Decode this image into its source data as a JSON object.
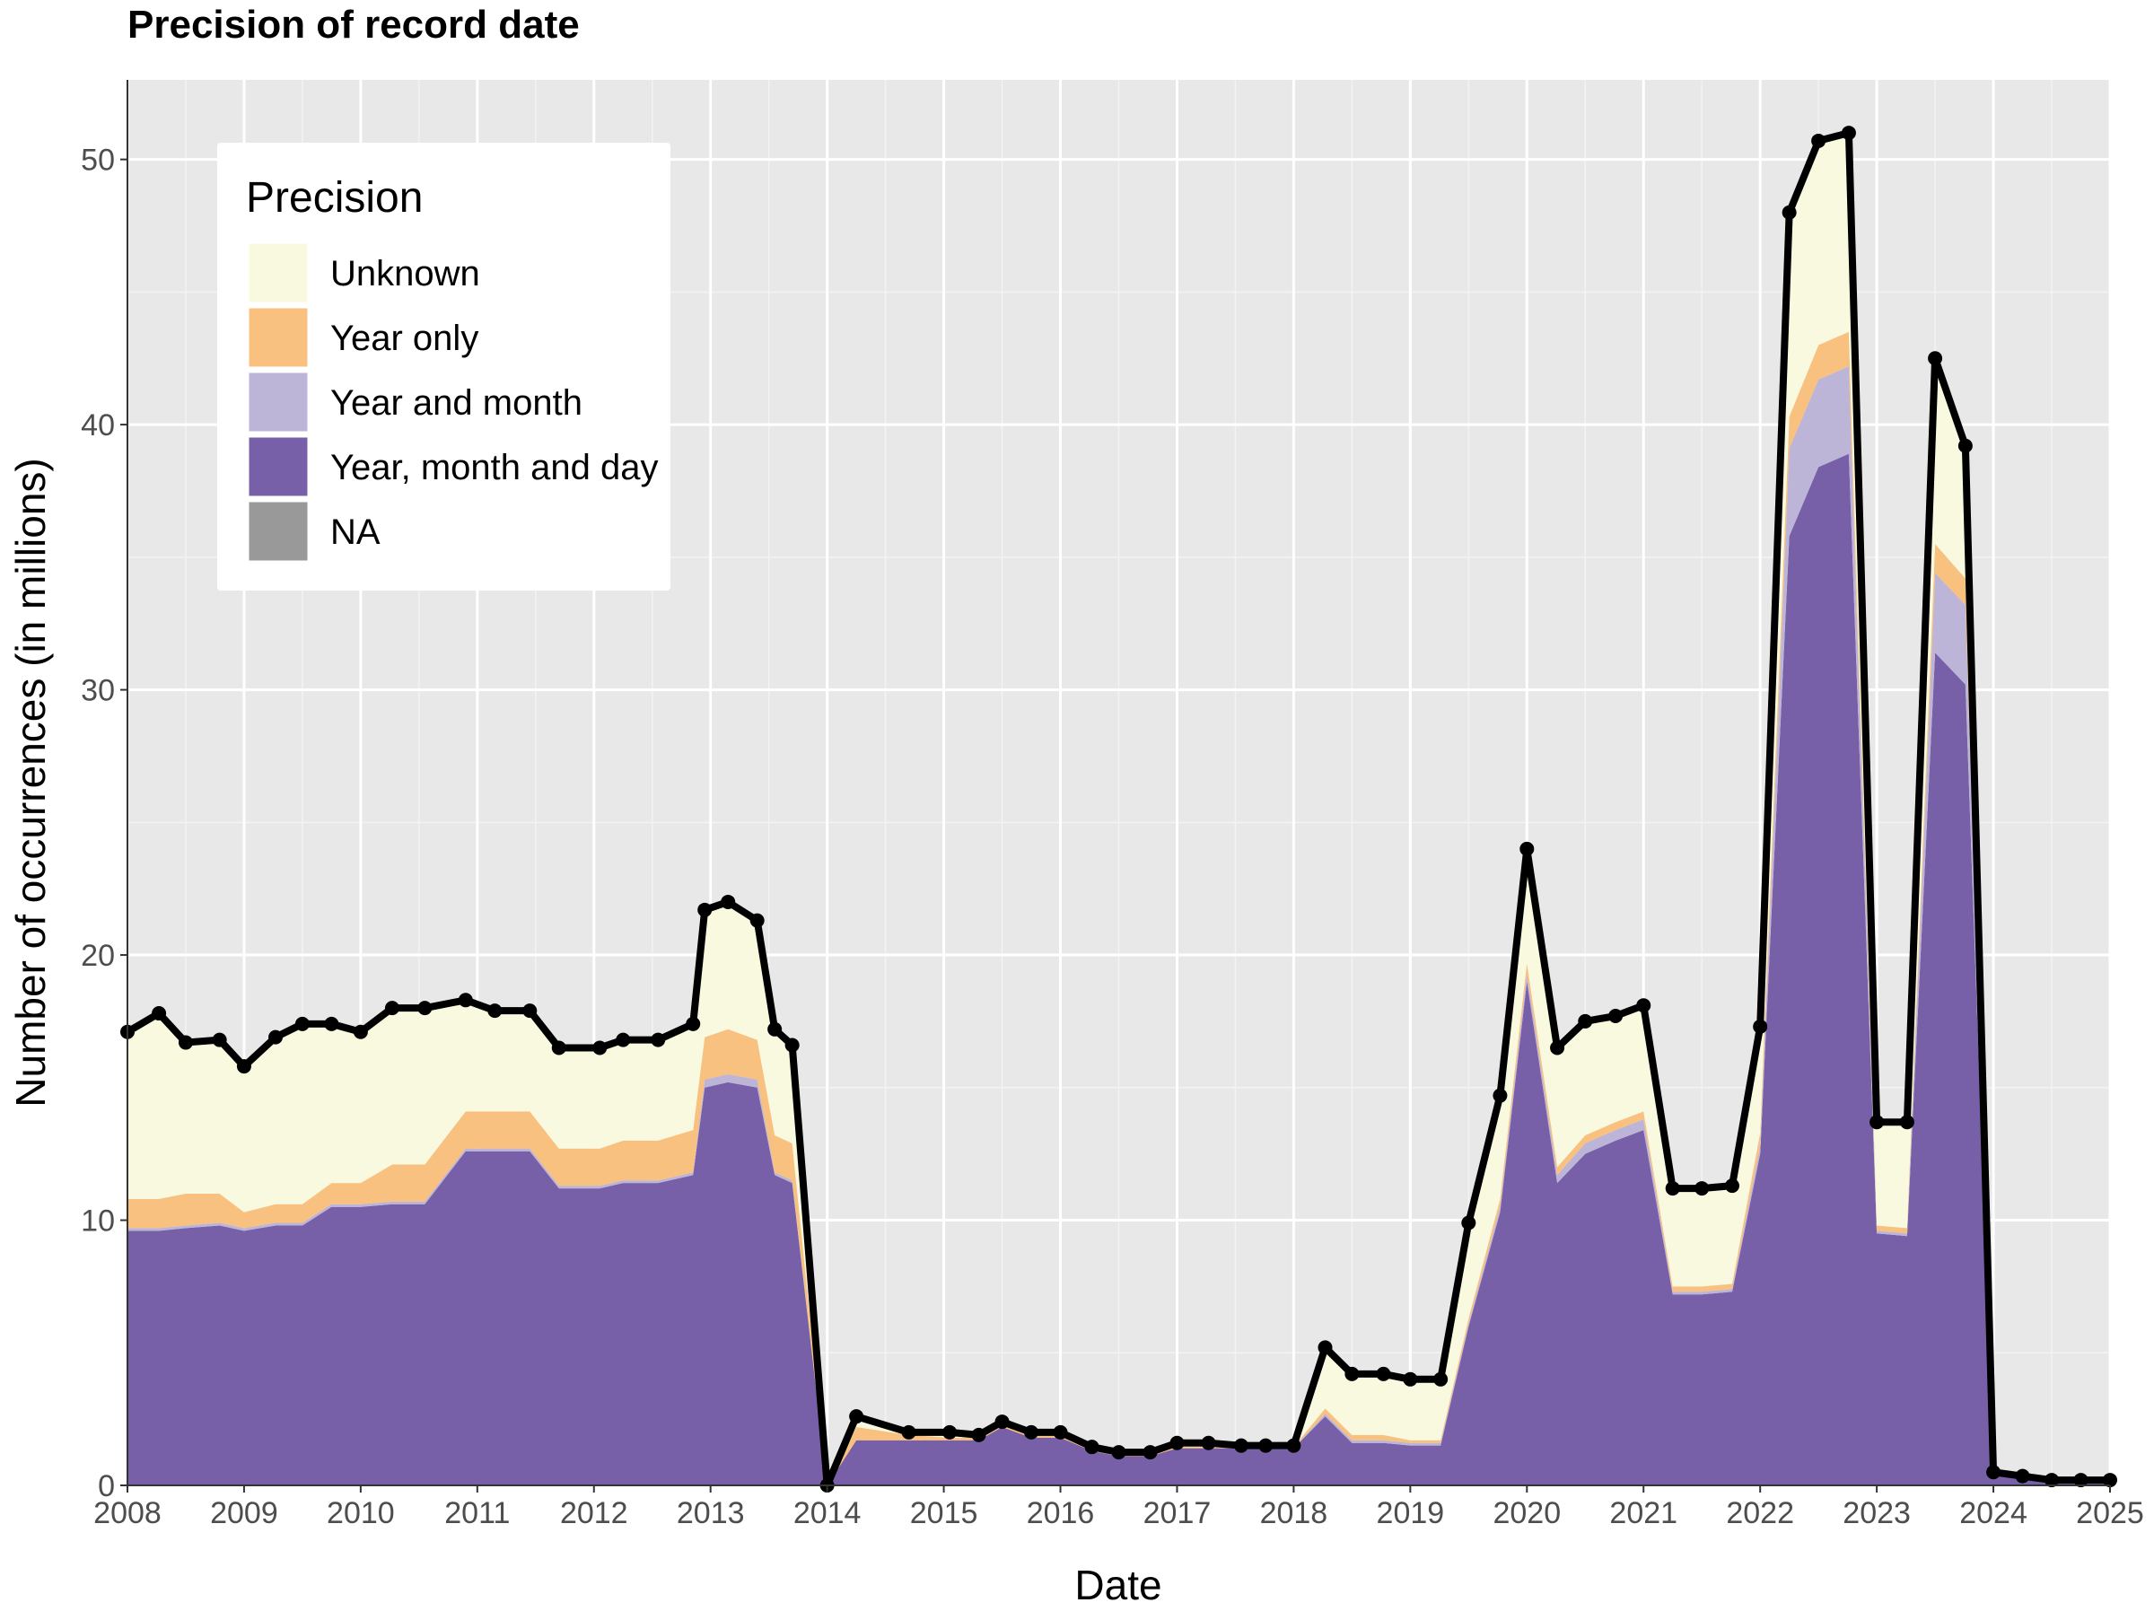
{
  "chart_data": {
    "type": "area",
    "stacked": true,
    "title": "Precision of record date",
    "xlabel": "Date",
    "ylabel": "Number of occurrences (in millions)",
    "xlim": [
      2008,
      2025
    ],
    "ylim": [
      0,
      53
    ],
    "x_ticks": [
      "2008",
      "2009",
      "2010",
      "2011",
      "2012",
      "2013",
      "2014",
      "2015",
      "2016",
      "2017",
      "2018",
      "2019",
      "2020",
      "2021",
      "2022",
      "2023",
      "2024",
      "2025"
    ],
    "y_ticks": [
      "0",
      "10",
      "20",
      "30",
      "40",
      "50"
    ],
    "grid": true,
    "legend": {
      "title": "Precision",
      "placement": "top-left",
      "entries": [
        {
          "label": "Unknown",
          "color": "#f9f9e0"
        },
        {
          "label": "Year only",
          "color": "#f9c17f"
        },
        {
          "label": "Year and month",
          "color": "#bcb5d8"
        },
        {
          "label": "Year, month and day",
          "color": "#7860a8"
        },
        {
          "label": "NA",
          "color": "#999999"
        }
      ]
    },
    "x": [
      2008.0,
      2008.27,
      2008.5,
      2008.79,
      2009.0,
      2009.27,
      2009.5,
      2009.75,
      2010.0,
      2010.27,
      2010.55,
      2010.9,
      2011.15,
      2011.45,
      2011.7,
      2012.05,
      2012.25,
      2012.55,
      2012.85,
      2012.95,
      2013.15,
      2013.4,
      2013.55,
      2013.7,
      2014.0,
      2014.25,
      2014.7,
      2015.05,
      2015.3,
      2015.5,
      2015.75,
      2016.0,
      2016.27,
      2016.5,
      2016.77,
      2017.0,
      2017.27,
      2017.55,
      2017.76,
      2018.0,
      2018.27,
      2018.5,
      2018.77,
      2019.0,
      2019.26,
      2019.5,
      2019.77,
      2020.0,
      2020.26,
      2020.5,
      2020.76,
      2021.0,
      2021.25,
      2021.5,
      2021.76,
      2022.0,
      2022.25,
      2022.5,
      2022.76,
      2023.0,
      2023.26,
      2023.5,
      2023.76,
      2024.0,
      2024.25,
      2024.5,
      2024.75,
      2025.0
    ],
    "total": [
      17.1,
      17.8,
      16.7,
      16.8,
      15.8,
      16.9,
      17.4,
      17.4,
      17.1,
      18.0,
      18.0,
      18.3,
      17.9,
      17.9,
      16.5,
      16.5,
      16.8,
      16.8,
      17.4,
      21.7,
      22.0,
      21.3,
      17.2,
      16.6,
      0,
      2.6,
      2.0,
      2.0,
      1.9,
      2.4,
      2.0,
      2.0,
      1.45,
      1.25,
      1.25,
      1.6,
      1.6,
      1.5,
      1.5,
      1.5,
      5.2,
      4.2,
      4.2,
      4.0,
      4.0,
      9.9,
      14.7,
      24.0,
      16.5,
      17.5,
      17.7,
      18.1,
      11.2,
      11.2,
      11.3,
      17.3,
      48.0,
      50.7,
      51.0,
      13.7,
      13.7,
      42.5,
      39.2,
      0.5,
      0.35,
      0.2,
      0.2,
      0.2
    ],
    "series": [
      {
        "name": "Year, month and day",
        "values": [
          9.6,
          9.6,
          9.7,
          9.8,
          9.6,
          9.8,
          9.8,
          10.5,
          10.5,
          10.6,
          10.6,
          12.6,
          12.6,
          12.6,
          11.2,
          11.2,
          11.4,
          11.4,
          11.7,
          15.0,
          15.2,
          15.0,
          11.7,
          11.4,
          0,
          1.7,
          1.7,
          1.7,
          1.7,
          2.2,
          1.8,
          1.8,
          1.3,
          1.1,
          1.1,
          1.4,
          1.4,
          1.4,
          1.4,
          1.4,
          2.6,
          1.6,
          1.6,
          1.5,
          1.5,
          6.0,
          10.3,
          19.0,
          11.4,
          12.5,
          13.0,
          13.4,
          7.2,
          7.2,
          7.3,
          12.5,
          35.8,
          38.4,
          38.9,
          9.5,
          9.4,
          31.4,
          30.2,
          0.4,
          0.3,
          0.15,
          0.15,
          0.15
        ]
      },
      {
        "name": "Year and month",
        "values": [
          0.1,
          0.1,
          0.1,
          0.1,
          0.1,
          0.1,
          0.1,
          0.1,
          0.1,
          0.1,
          0.1,
          0.1,
          0.1,
          0.1,
          0.1,
          0.1,
          0.1,
          0.1,
          0.1,
          0.3,
          0.3,
          0.3,
          0.1,
          0.1,
          0,
          0,
          0,
          0,
          0,
          0,
          0,
          0,
          0,
          0,
          0,
          0,
          0,
          0,
          0,
          0,
          0.1,
          0.1,
          0.1,
          0.1,
          0.1,
          0.1,
          0.2,
          0.3,
          0.3,
          0.4,
          0.4,
          0.4,
          0.1,
          0.1,
          0.1,
          0.3,
          3.3,
          3.3,
          3.3,
          0.1,
          0.1,
          3.0,
          3.0,
          0,
          0,
          0,
          0,
          0
        ]
      },
      {
        "name": "Year only",
        "values": [
          1.1,
          1.1,
          1.2,
          1.1,
          0.6,
          0.7,
          0.7,
          0.8,
          0.8,
          1.4,
          1.4,
          1.4,
          1.4,
          1.4,
          1.4,
          1.4,
          1.5,
          1.5,
          1.6,
          1.6,
          1.7,
          1.5,
          1.4,
          1.4,
          0,
          0.5,
          0.2,
          0.1,
          0.1,
          0.1,
          0.1,
          0.1,
          0.05,
          0.05,
          0.05,
          0.05,
          0.05,
          0.05,
          0.05,
          0.05,
          0.2,
          0.2,
          0.2,
          0.1,
          0.1,
          0.2,
          0.3,
          0.4,
          0.3,
          0.3,
          0.3,
          0.3,
          0.2,
          0.2,
          0.2,
          0.5,
          1.2,
          1.3,
          1.3,
          0.2,
          0.2,
          1.1,
          1.0,
          0,
          0,
          0,
          0,
          0
        ]
      }
    ]
  }
}
